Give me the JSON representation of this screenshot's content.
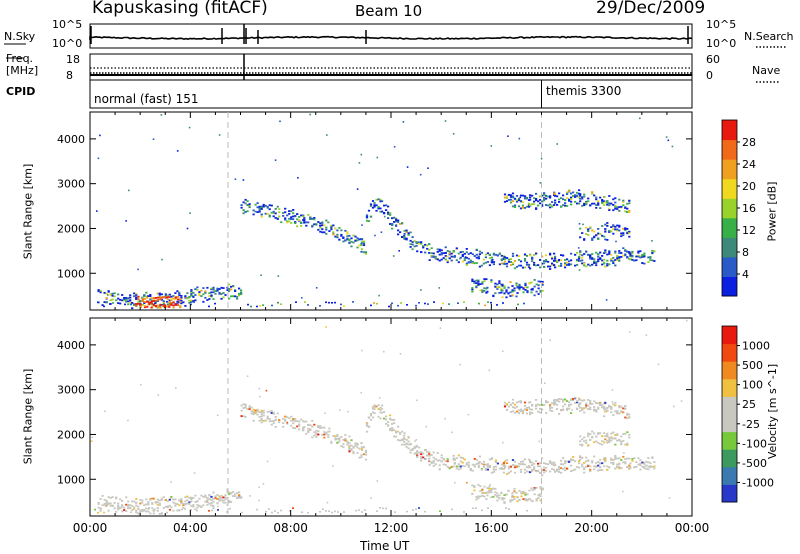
{
  "header": {
    "station": "Kapuskasing (fitACF)",
    "beam": "Beam 10",
    "date": "29/Dec/2009"
  },
  "summary_panels": {
    "nsky_label": "N.Sky",
    "nsearch_label": "N.Search",
    "nsky_ticks": [
      "10^5",
      "10^0"
    ],
    "nsearch_ticks": [
      "10^5",
      "10^0"
    ],
    "freq_label_line1": "Freq.",
    "freq_label_line2": "[MHz]",
    "freq_ticks": [
      "18",
      "8"
    ],
    "nave_label": "Nave",
    "nave_ticks": [
      "60",
      "0"
    ],
    "cpid_label": "CPID",
    "cpid_modes": [
      {
        "name": "normal (fast) 151",
        "start_hour": 0,
        "end_hour": 18.0
      },
      {
        "name": "themis 3300",
        "start_hour": 18.0,
        "end_hour": 24
      }
    ]
  },
  "chart_data": [
    {
      "type": "heatmap",
      "title": "",
      "quantity": "Power",
      "ylabel": "Slant Range [km]",
      "xlabel": "",
      "xlim": [
        0,
        24
      ],
      "ylim": [
        180,
        4600
      ],
      "yticks": [
        1000,
        2000,
        3000,
        4000
      ],
      "colorbar": {
        "label": "Power [dB]",
        "ticks": [
          "28",
          "24",
          "20",
          "16",
          "12",
          "8",
          "4"
        ],
        "colors": [
          "#0a1fe0",
          "#2a5ac8",
          "#3e8a7a",
          "#38b048",
          "#9ad22c",
          "#f0d820",
          "#f0a020",
          "#f06a1a",
          "#e81a10"
        ]
      },
      "features": [
        {
          "name": "band_A",
          "x": [
            6.0,
            6.8,
            7.5,
            8.5,
            9.5,
            10.3,
            10.8,
            11.0
          ],
          "y": [
            2550,
            2450,
            2350,
            2200,
            2000,
            1800,
            1650,
            1600
          ]
        },
        {
          "name": "band_B",
          "x": [
            11.0,
            11.3,
            11.6,
            12.0,
            12.5,
            13.0,
            13.5
          ],
          "y": [
            2200,
            2600,
            2500,
            2200,
            1900,
            1650,
            1500
          ]
        },
        {
          "name": "band_C",
          "x": [
            13.5,
            14.5,
            15.5,
            16.5,
            17.5,
            18.5,
            19.5,
            20.5,
            21.5,
            22.5
          ],
          "y": [
            1450,
            1400,
            1350,
            1300,
            1300,
            1300,
            1350,
            1350,
            1400,
            1400
          ]
        },
        {
          "name": "band_D",
          "x": [
            0.3,
            1.0,
            1.8,
            2.5,
            3.2,
            4.0,
            4.8,
            5.5,
            6.0
          ],
          "y": [
            500,
            450,
            430,
            420,
            450,
            500,
            550,
            600,
            600
          ]
        },
        {
          "name": "band_E",
          "x": [
            15.2,
            15.8,
            16.4,
            17.0,
            17.6,
            18.0
          ],
          "y": [
            750,
            700,
            650,
            650,
            700,
            700
          ]
        },
        {
          "name": "band_F",
          "x": [
            16.5,
            17.5,
            18.5,
            19.5,
            20.5,
            21.5
          ],
          "y": [
            2650,
            2600,
            2650,
            2700,
            2600,
            2500
          ]
        },
        {
          "name": "band_G",
          "x": [
            19.5,
            20.5,
            21.5
          ],
          "y": [
            1900,
            1950,
            1900
          ]
        }
      ]
    },
    {
      "type": "heatmap",
      "title": "",
      "quantity": "Velocity",
      "ylabel": "Slant Range [km]",
      "xlabel": "Time UT",
      "xlim": [
        0,
        24
      ],
      "ylim": [
        180,
        4600
      ],
      "yticks": [
        1000,
        2000,
        3000,
        4000
      ],
      "xticks": [
        "00:00",
        "04:00",
        "08:00",
        "12:00",
        "16:00",
        "20:00",
        "00:00"
      ],
      "colorbar": {
        "label": "Velocity [m s^-1]",
        "ticks": [
          "1000",
          "500",
          "100",
          "25",
          "-25",
          "-100",
          "-500",
          "-1000"
        ],
        "colors": [
          "#2838c8",
          "#3a7ab0",
          "#3c9a60",
          "#78c83c",
          "#c8c8c0",
          "#c8c8c0",
          "#f0c040",
          "#f08a20",
          "#f04a10",
          "#e81a10"
        ]
      }
    }
  ]
}
